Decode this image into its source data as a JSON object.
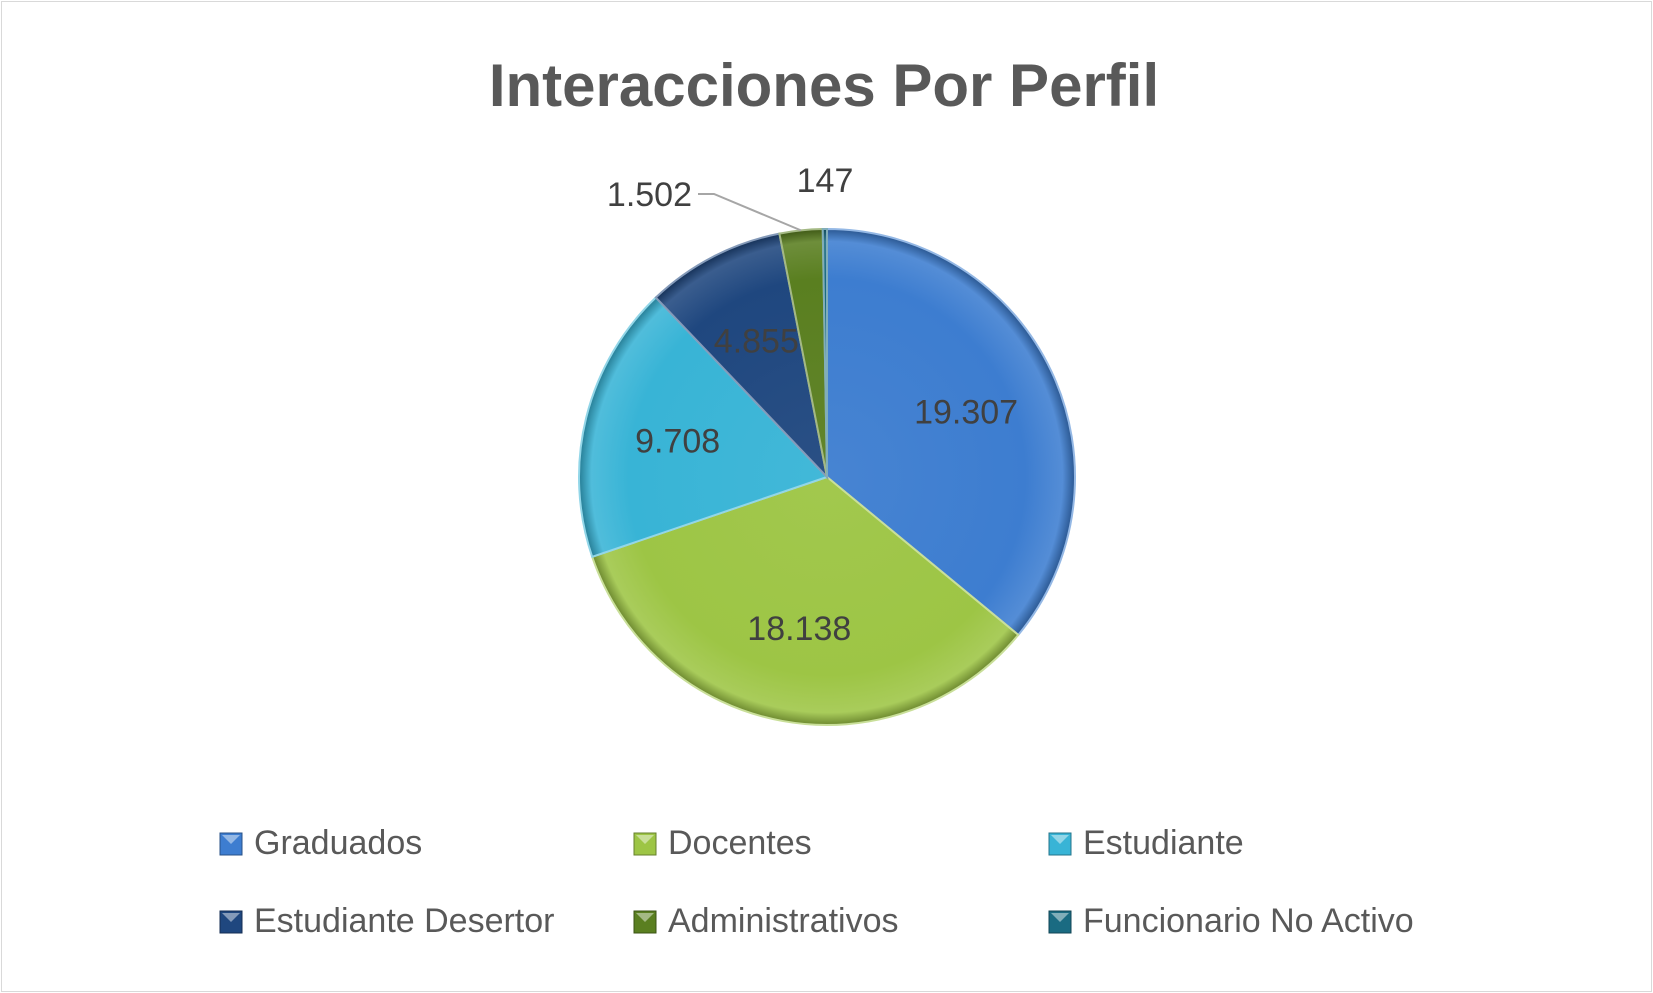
{
  "chart_data": {
    "type": "pie",
    "title": "Interacciones Por Perfil",
    "categories": [
      "Graduados",
      "Docentes",
      "Estudiante",
      "Estudiante Desertor",
      "Administrativos",
      "Funcionario No Activo"
    ],
    "values": [
      19307,
      18138,
      9708,
      4855,
      1502,
      147
    ],
    "value_labels": [
      "19.307",
      "18.138",
      "9.708",
      "4.855",
      "1.502",
      "147"
    ],
    "colors": [
      "#3d7dd0",
      "#9dc545",
      "#38b4d6",
      "#1f477f",
      "#5a7f20",
      "#1a6b82"
    ],
    "legend_position": "bottom",
    "start_angle": "12 o'clock",
    "direction": "clockwise"
  }
}
